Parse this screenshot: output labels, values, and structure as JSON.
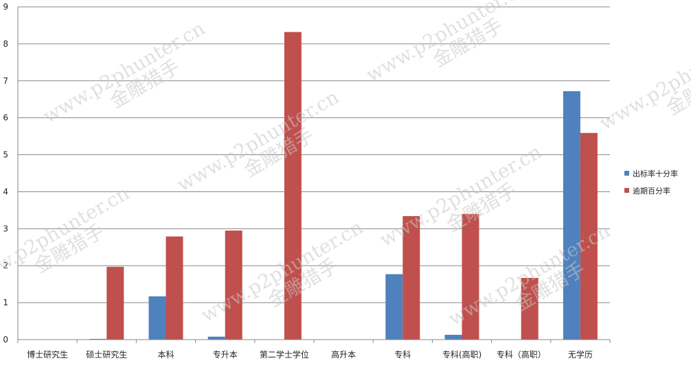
{
  "chart_data": {
    "type": "bar",
    "categories": [
      "博士研究生",
      "硕士研究生",
      "本科",
      "专升本",
      "第二学士学位",
      "高升本",
      "专科",
      "专科(高职)",
      "专科（高职）",
      "无学历"
    ],
    "series": [
      {
        "name": "出标率十分率",
        "color": "#4f81bd",
        "values": [
          0,
          0.02,
          1.17,
          0.08,
          0,
          0,
          1.77,
          0.13,
          0,
          6.72
        ]
      },
      {
        "name": "逾期百分率",
        "color": "#c0504d",
        "values": [
          0,
          1.97,
          2.79,
          2.95,
          8.32,
          0,
          3.34,
          3.4,
          1.67,
          5.59
        ]
      }
    ],
    "ylim": [
      0,
      9
    ],
    "yticks": [
      0,
      1,
      2,
      3,
      4,
      5,
      6,
      7,
      8,
      9
    ],
    "grid": true,
    "legend_position": "right",
    "title": "",
    "xlabel": "",
    "ylabel": ""
  },
  "watermark": {
    "url": "www.p2phunter.cn",
    "brand": "金雕猎手"
  }
}
